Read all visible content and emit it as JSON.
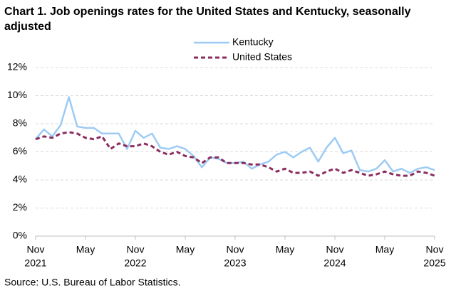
{
  "chart_data": {
    "type": "line",
    "title": "Chart 1. Job openings rates for the United States and Kentucky, seasonally adjusted",
    "source": "Source: U.S. Bureau of Labor Statistics.",
    "categories": [
      "Nov",
      null,
      null,
      null,
      null,
      null,
      "May",
      null,
      null,
      null,
      null,
      null,
      "Nov",
      null,
      null,
      null,
      null,
      null,
      "May",
      null,
      null,
      null,
      null,
      null,
      "Nov",
      null,
      null,
      null,
      null,
      null,
      "May",
      null,
      null,
      null,
      null,
      null,
      "Nov",
      null,
      null,
      null,
      null,
      null,
      "May",
      null,
      null,
      null,
      null,
      null,
      "Nov"
    ],
    "years": [
      "2021",
      null,
      null,
      null,
      null,
      null,
      null,
      null,
      null,
      null,
      null,
      null,
      "2022",
      null,
      null,
      null,
      null,
      null,
      null,
      null,
      null,
      null,
      null,
      null,
      "2023",
      null,
      null,
      null,
      null,
      null,
      null,
      null,
      null,
      null,
      null,
      null,
      "2024",
      null,
      null,
      null,
      null,
      null,
      null,
      null,
      null,
      null,
      null,
      null,
      "2025"
    ],
    "series": [
      {
        "name": "Kentucky",
        "color": "#9dcbf4",
        "dash": false,
        "values": [
          6.9,
          7.6,
          7.1,
          7.9,
          9.9,
          7.8,
          7.7,
          7.7,
          7.3,
          7.3,
          7.3,
          6.2,
          7.5,
          7.0,
          7.3,
          6.3,
          6.2,
          6.4,
          6.2,
          5.7,
          4.9,
          5.6,
          5.5,
          5.2,
          5.2,
          5.3,
          4.8,
          5.1,
          5.3,
          5.8,
          6.0,
          5.6,
          6.0,
          6.3,
          5.3,
          6.3,
          7.0,
          5.9,
          6.1,
          4.7,
          4.6,
          4.8,
          5.4,
          4.6,
          4.8,
          4.5,
          4.8,
          4.9,
          4.7
        ]
      },
      {
        "name": "United States",
        "color": "#8b2e5f",
        "dash": true,
        "values": [
          6.9,
          7.1,
          7.0,
          7.3,
          7.4,
          7.3,
          7.0,
          6.9,
          7.1,
          6.2,
          6.6,
          6.4,
          6.4,
          6.6,
          6.4,
          6.0,
          5.8,
          6.0,
          5.7,
          5.6,
          5.2,
          5.6,
          5.6,
          5.2,
          5.2,
          5.2,
          5.1,
          5.1,
          4.9,
          4.6,
          4.8,
          4.5,
          4.5,
          4.6,
          4.3,
          4.6,
          4.8,
          4.5,
          4.7,
          4.5,
          4.3,
          4.4,
          4.6,
          4.4,
          4.3,
          4.3,
          4.6,
          4.5,
          4.3
        ]
      }
    ],
    "ylim": [
      0,
      12
    ],
    "yticks": [
      {
        "value": 0,
        "label": "0%"
      },
      {
        "value": 2,
        "label": "2%"
      },
      {
        "value": 4,
        "label": "4%"
      },
      {
        "value": 6,
        "label": "6%"
      },
      {
        "value": 8,
        "label": "8%"
      },
      {
        "value": 10,
        "label": "10%"
      },
      {
        "value": 12,
        "label": "12%"
      }
    ],
    "grid": true
  }
}
